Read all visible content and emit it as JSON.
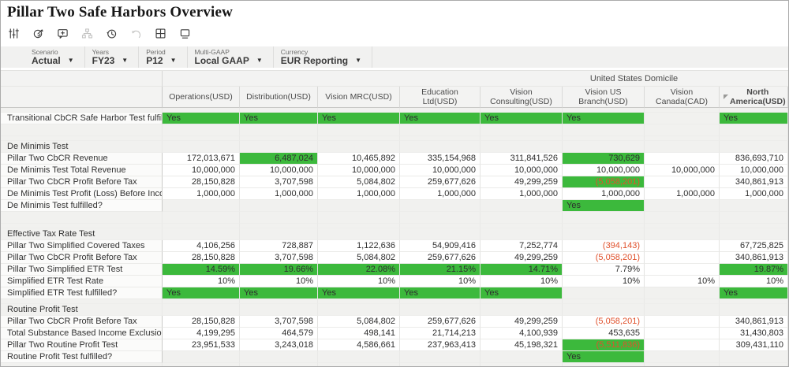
{
  "title": "Pillar Two Safe Harbors Overview",
  "toolbar": {
    "icons": [
      {
        "name": "filter-sliders-icon",
        "disabled": false
      },
      {
        "name": "submit-data-icon",
        "disabled": false
      },
      {
        "name": "add-comment-icon",
        "disabled": false
      },
      {
        "name": "hierarchy-icon",
        "disabled": true
      },
      {
        "name": "history-icon",
        "disabled": false
      },
      {
        "name": "undo-icon",
        "disabled": true
      },
      {
        "name": "grid-layout-icon",
        "disabled": false
      },
      {
        "name": "open-window-icon",
        "disabled": false
      }
    ]
  },
  "pov": {
    "items": [
      {
        "label": "Scenario",
        "value": "Actual"
      },
      {
        "label": "Years",
        "value": "FY23"
      },
      {
        "label": "Period",
        "value": "P12"
      },
      {
        "label": "Multi-GAAP",
        "value": "Local GAAP"
      },
      {
        "label": "Currency",
        "value": "EUR Reporting"
      }
    ]
  },
  "grid": {
    "domicile_header": "United States Domicile",
    "columns": [
      {
        "label": "Operations(USD)"
      },
      {
        "label": "Distribution(USD)"
      },
      {
        "label": "Vision MRC(USD)"
      },
      {
        "label": "Education Ltd(USD)"
      },
      {
        "label": "Vision Consulting(USD)"
      },
      {
        "label": "Vision US Branch(USD)"
      },
      {
        "label": "Vision Canada(CAD)"
      },
      {
        "label": "North America(USD)",
        "bold": true,
        "marker": true
      }
    ],
    "rows": [
      {
        "type": "thin",
        "label": ""
      },
      {
        "type": "test",
        "label": "Transitional CbCR Safe Harbor Test fulfilled?",
        "cells": [
          {
            "t": "Yes",
            "g": true
          },
          {
            "t": "Yes",
            "g": true
          },
          {
            "t": "Yes",
            "g": true
          },
          {
            "t": "Yes",
            "g": true
          },
          {
            "t": "Yes",
            "g": true
          },
          {
            "t": "Yes",
            "g": true
          },
          {},
          {
            "t": "Yes",
            "g": true
          }
        ]
      },
      {
        "type": "blank",
        "label": ""
      },
      {
        "type": "thin",
        "label": ""
      },
      {
        "type": "section",
        "label": "De Minimis Test"
      },
      {
        "type": "data",
        "label": "Pillar Two CbCR Revenue",
        "cells": [
          {
            "t": "172,013,671"
          },
          {
            "t": "6,487,024",
            "g": true
          },
          {
            "t": "10,465,892"
          },
          {
            "t": "335,154,968"
          },
          {
            "t": "311,841,526"
          },
          {
            "t": "730,629",
            "g": true
          },
          {},
          {
            "t": "836,693,710"
          }
        ]
      },
      {
        "type": "data",
        "label": "De Minimis Test Total Revenue",
        "cells": [
          {
            "t": "10,000,000"
          },
          {
            "t": "10,000,000"
          },
          {
            "t": "10,000,000"
          },
          {
            "t": "10,000,000"
          },
          {
            "t": "10,000,000"
          },
          {
            "t": "10,000,000"
          },
          {
            "t": "10,000,000"
          },
          {
            "t": "10,000,000"
          }
        ]
      },
      {
        "type": "data",
        "label": "Pillar Two CbCR Profit Before Tax",
        "cells": [
          {
            "t": "28,150,828"
          },
          {
            "t": "3,707,598"
          },
          {
            "t": "5,084,802"
          },
          {
            "t": "259,677,626"
          },
          {
            "t": "49,299,259"
          },
          {
            "t": "(5,058,201)",
            "g": true,
            "neg": true
          },
          {},
          {
            "t": "340,861,913"
          }
        ]
      },
      {
        "type": "data",
        "label": "De Minimis Test Profit (Loss) Before Income Tax",
        "cells": [
          {
            "t": "1,000,000"
          },
          {
            "t": "1,000,000"
          },
          {
            "t": "1,000,000"
          },
          {
            "t": "1,000,000"
          },
          {
            "t": "1,000,000"
          },
          {
            "t": "1,000,000"
          },
          {
            "t": "1,000,000"
          },
          {
            "t": "1,000,000"
          }
        ]
      },
      {
        "type": "test",
        "label": "De Minimis Test fulfilled?",
        "cells": [
          {},
          {},
          {},
          {},
          {},
          {
            "t": "Yes",
            "g": true
          },
          {},
          {}
        ]
      },
      {
        "type": "blank",
        "label": ""
      },
      {
        "type": "thin",
        "label": ""
      },
      {
        "type": "section",
        "label": "Effective Tax Rate Test"
      },
      {
        "type": "data",
        "label": "Pillar Two Simplified Covered Taxes",
        "cells": [
          {
            "t": "4,106,256"
          },
          {
            "t": "728,887"
          },
          {
            "t": "1,122,636"
          },
          {
            "t": "54,909,416"
          },
          {
            "t": "7,252,774"
          },
          {
            "t": "(394,143)",
            "neg": true
          },
          {},
          {
            "t": "67,725,825"
          }
        ]
      },
      {
        "type": "data",
        "label": "Pillar Two CbCR Profit Before Tax",
        "cells": [
          {
            "t": "28,150,828"
          },
          {
            "t": "3,707,598"
          },
          {
            "t": "5,084,802"
          },
          {
            "t": "259,677,626"
          },
          {
            "t": "49,299,259"
          },
          {
            "t": "(5,058,201)",
            "neg": true
          },
          {},
          {
            "t": "340,861,913"
          }
        ]
      },
      {
        "type": "data",
        "label": "Pillar Two Simplified ETR Test",
        "cells": [
          {
            "t": "14.59%",
            "g": true
          },
          {
            "t": "19.66%",
            "g": true
          },
          {
            "t": "22.08%",
            "g": true
          },
          {
            "t": "21.15%",
            "g": true
          },
          {
            "t": "14.71%",
            "g": true
          },
          {
            "t": "7.79%"
          },
          {},
          {
            "t": "19.87%",
            "g": true
          }
        ]
      },
      {
        "type": "data",
        "label": "Simplified ETR Test Rate",
        "cells": [
          {
            "t": "10%"
          },
          {
            "t": "10%"
          },
          {
            "t": "10%"
          },
          {
            "t": "10%"
          },
          {
            "t": "10%"
          },
          {
            "t": "10%"
          },
          {
            "t": "10%"
          },
          {
            "t": "10%"
          }
        ]
      },
      {
        "type": "test",
        "label": "Simplified ETR Test fulfilled?",
        "cells": [
          {
            "t": "Yes",
            "g": true
          },
          {
            "t": "Yes",
            "g": true
          },
          {
            "t": "Yes",
            "g": true
          },
          {
            "t": "Yes",
            "g": true
          },
          {
            "t": "Yes",
            "g": true
          },
          {},
          {},
          {
            "t": "Yes",
            "g": true
          }
        ]
      },
      {
        "type": "thin",
        "label": ""
      },
      {
        "type": "section",
        "label": "Routine Profit Test"
      },
      {
        "type": "data",
        "label": "Pillar Two CbCR Profit Before Tax",
        "cells": [
          {
            "t": "28,150,828"
          },
          {
            "t": "3,707,598"
          },
          {
            "t": "5,084,802"
          },
          {
            "t": "259,677,626"
          },
          {
            "t": "49,299,259"
          },
          {
            "t": "(5,058,201)",
            "neg": true
          },
          {},
          {
            "t": "340,861,913"
          }
        ]
      },
      {
        "type": "data",
        "label": "Total Substance Based Income Exclusion",
        "cells": [
          {
            "t": "4,199,295"
          },
          {
            "t": "464,579"
          },
          {
            "t": "498,141"
          },
          {
            "t": "21,714,213"
          },
          {
            "t": "4,100,939"
          },
          {
            "t": "453,635"
          },
          {},
          {
            "t": "31,430,803"
          }
        ]
      },
      {
        "type": "data",
        "label": "Pillar Two Routine Profit Test",
        "cells": [
          {
            "t": "23,951,533"
          },
          {
            "t": "3,243,018"
          },
          {
            "t": "4,586,661"
          },
          {
            "t": "237,963,413"
          },
          {
            "t": "45,198,321"
          },
          {
            "t": "(5,511,836)",
            "g": true,
            "neg": true
          },
          {},
          {
            "t": "309,431,110"
          }
        ]
      },
      {
        "type": "test",
        "label": "Routine Profit Test fulfilled?",
        "cells": [
          {},
          {},
          {},
          {},
          {},
          {
            "t": "Yes",
            "g": true
          },
          {},
          {}
        ]
      },
      {
        "type": "filler",
        "label": ""
      }
    ]
  },
  "colors": {
    "highlight_green": "#3cb93c",
    "negative_red": "#e0512c",
    "header_bg": "#f3f3f2"
  }
}
